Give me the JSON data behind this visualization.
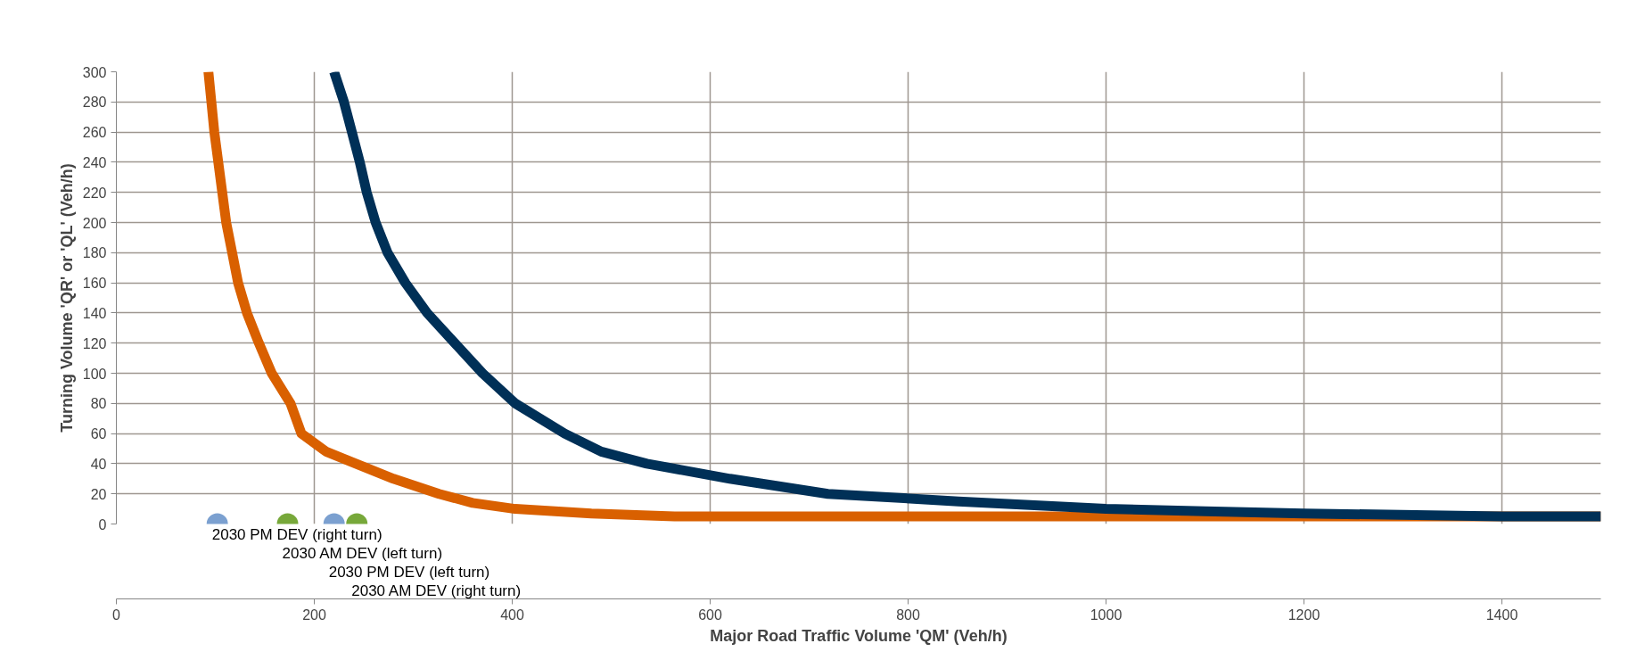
{
  "chart_data": {
    "type": "line",
    "xlabel": "Major Road Traffic Volume 'QM' (Veh/h)",
    "ylabel": "Turning Volume 'QR' or 'QL' (Veh/h)",
    "xlim": [
      0,
      1500
    ],
    "ylim": [
      0,
      300
    ],
    "xticks": [
      0,
      200,
      400,
      600,
      800,
      1000,
      1200,
      1400
    ],
    "yticks": [
      0,
      20,
      40,
      60,
      80,
      100,
      120,
      140,
      160,
      180,
      200,
      220,
      240,
      260,
      280,
      300
    ],
    "grid": true,
    "legend": false,
    "line_style": "solid",
    "series": [
      {
        "color": "#d96000",
        "marker": "none",
        "x": [
          93,
          96,
          99,
          103,
          107,
          111,
          117,
          123,
          132,
          144,
          157,
          176,
          187,
          212,
          242,
          280,
          326,
          360,
          403,
          480,
          564,
          800,
          1000,
          1200,
          1500
        ],
        "values": [
          300,
          280,
          260,
          240,
          220,
          200,
          180,
          160,
          140,
          120,
          100,
          80,
          60,
          48,
          40,
          30,
          20,
          14,
          10,
          7,
          5,
          5,
          5,
          5,
          5
        ]
      },
      {
        "color": "#003057",
        "marker": "none",
        "x": [
          220,
          230,
          238,
          246,
          253,
          262,
          274,
          292,
          314,
          342,
          370,
          403,
          453,
          490,
          536,
          620,
          719,
          851,
          1000,
          1100,
          1200,
          1400,
          1500
        ],
        "values": [
          300,
          280,
          260,
          240,
          220,
          200,
          180,
          160,
          140,
          120,
          100,
          80,
          60,
          48,
          40,
          30,
          20,
          15,
          10,
          8.5,
          7,
          5,
          5
        ]
      },
      {
        "type": "scatter",
        "name": "2030 PM DEV (right turn)",
        "color": "#7ba0d0",
        "marker": "circle",
        "x": [
          102
        ],
        "values": [
          0
        ]
      },
      {
        "type": "scatter",
        "name": "2030 AM DEV (left turn)",
        "color": "#77a83a",
        "marker": "circle",
        "x": [
          173
        ],
        "values": [
          0
        ]
      },
      {
        "type": "scatter",
        "name": "2030 PM DEV (left turn)",
        "color": "#7ba0d0",
        "marker": "circle",
        "x": [
          220
        ],
        "values": [
          0
        ]
      },
      {
        "type": "scatter",
        "name": "2030 AM DEV (right turn)",
        "color": "#77a83a",
        "marker": "circle",
        "x": [
          243
        ],
        "values": [
          0
        ]
      }
    ]
  }
}
